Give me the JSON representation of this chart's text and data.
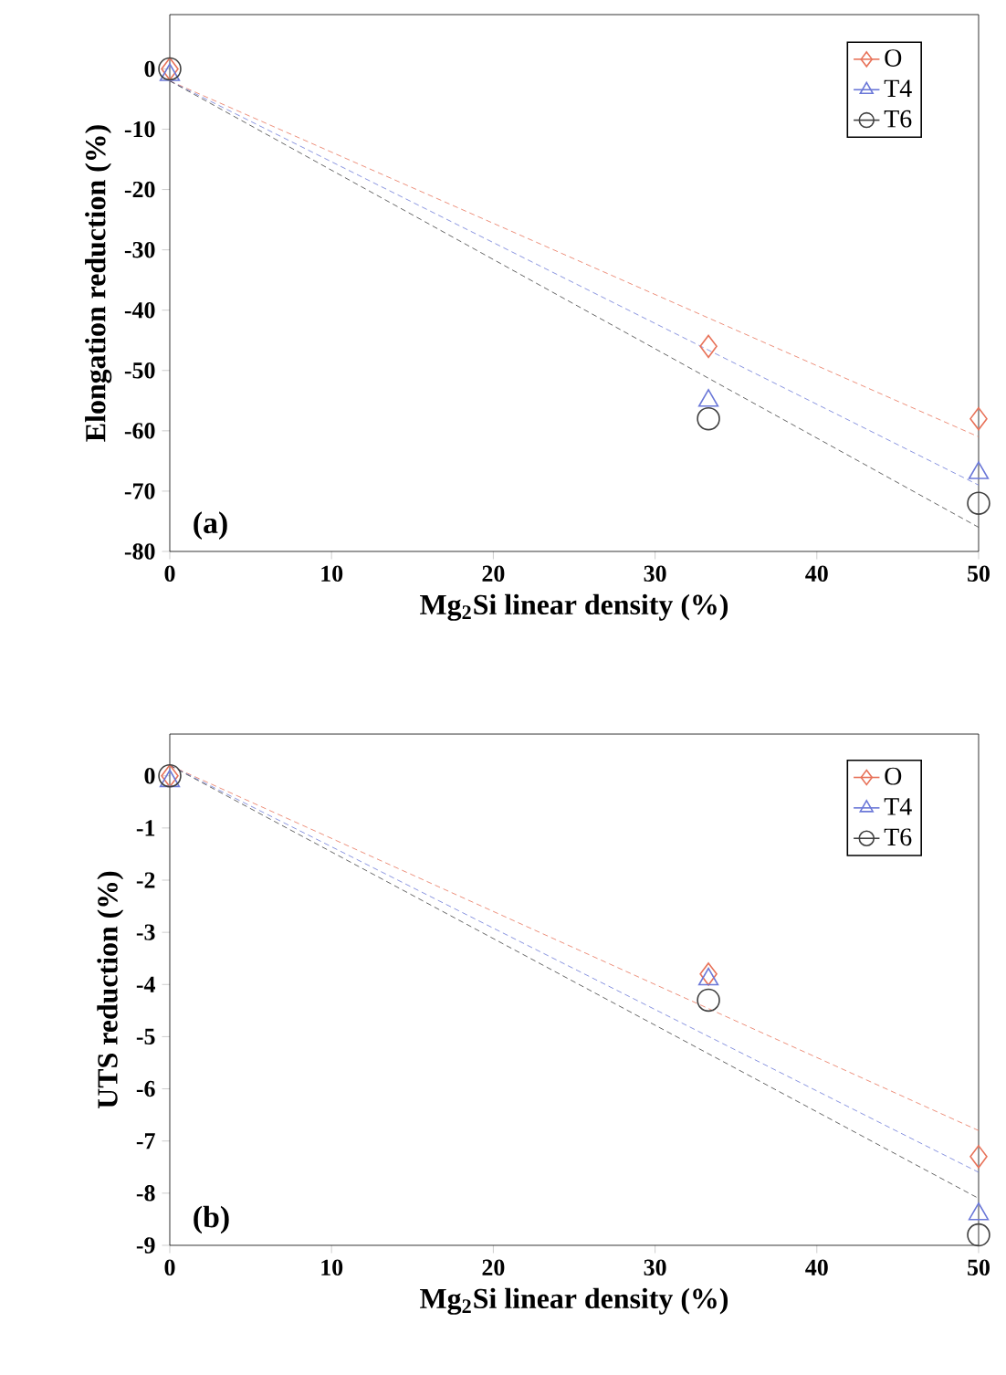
{
  "chart_data": [
    {
      "type": "scatter",
      "ylabel": "Elongation reduction (%)",
      "xlabel": "Mg$_{2}$Si linear density (%)",
      "xlim": [
        0,
        50
      ],
      "ylim": [
        -80,
        9
      ],
      "xticks": [
        0,
        10,
        20,
        30,
        40,
        50
      ],
      "yticks": [
        -80,
        -70,
        -60,
        -50,
        -40,
        -30,
        -20,
        -10,
        0
      ],
      "legend": "top right",
      "annotations": [
        "(a)"
      ],
      "series": [
        {
          "name": "O",
          "color": "#e8735a",
          "marker": "diamond",
          "x": [
            0,
            33.3,
            50
          ],
          "values": [
            0,
            -46,
            -58
          ]
        },
        {
          "name": "T4",
          "color": "#6b78d8",
          "marker": "triangle",
          "x": [
            0,
            33.3,
            50
          ],
          "values": [
            -1,
            -55,
            -67
          ]
        },
        {
          "name": "T6",
          "color": "#404040",
          "marker": "circle",
          "x": [
            0,
            33.3,
            50
          ],
          "values": [
            0,
            -58,
            -72
          ]
        },
        {
          "type": "line",
          "color": "#e8735a",
          "line_style": "dashed",
          "x": [
            0,
            50
          ],
          "values": [
            -2,
            -61
          ]
        },
        {
          "type": "line",
          "color": "#6b78d8",
          "line_style": "dashed",
          "x": [
            0,
            50
          ],
          "values": [
            -2,
            -69
          ]
        },
        {
          "type": "line",
          "color": "#404040",
          "line_style": "dashed",
          "x": [
            0,
            50
          ],
          "values": [
            -2,
            -76
          ]
        }
      ]
    },
    {
      "type": "scatter",
      "ylabel": "UTS reduction (%)",
      "xlabel": "Mg$_{2}$Si linear density (%)",
      "xlim": [
        0,
        50
      ],
      "ylim": [
        -9,
        0.8
      ],
      "xticks": [
        0,
        10,
        20,
        30,
        40,
        50
      ],
      "yticks": [
        -9,
        -8,
        -7,
        -6,
        -5,
        -4,
        -3,
        -2,
        -1,
        0
      ],
      "legend": "top right",
      "annotations": [
        "(b)"
      ],
      "series": [
        {
          "name": "O",
          "color": "#e8735a",
          "marker": "diamond",
          "x": [
            0,
            33.3,
            50
          ],
          "values": [
            0,
            -3.8,
            -7.3
          ]
        },
        {
          "name": "T4",
          "color": "#6b78d8",
          "marker": "triangle",
          "x": [
            0,
            33.3,
            50
          ],
          "values": [
            -0.1,
            -3.9,
            -8.4
          ]
        },
        {
          "name": "T6",
          "color": "#404040",
          "marker": "circle",
          "x": [
            0,
            33.3,
            50
          ],
          "values": [
            0,
            -4.3,
            -8.8
          ]
        },
        {
          "type": "line",
          "color": "#e8735a",
          "line_style": "dashed",
          "x": [
            0,
            50
          ],
          "values": [
            0.2,
            -6.8
          ]
        },
        {
          "type": "line",
          "color": "#6b78d8",
          "line_style": "dashed",
          "x": [
            0,
            50
          ],
          "values": [
            0.2,
            -7.6
          ]
        },
        {
          "type": "line",
          "color": "#404040",
          "line_style": "dashed",
          "x": [
            0,
            50
          ],
          "values": [
            0.2,
            -8.1
          ]
        }
      ]
    }
  ]
}
